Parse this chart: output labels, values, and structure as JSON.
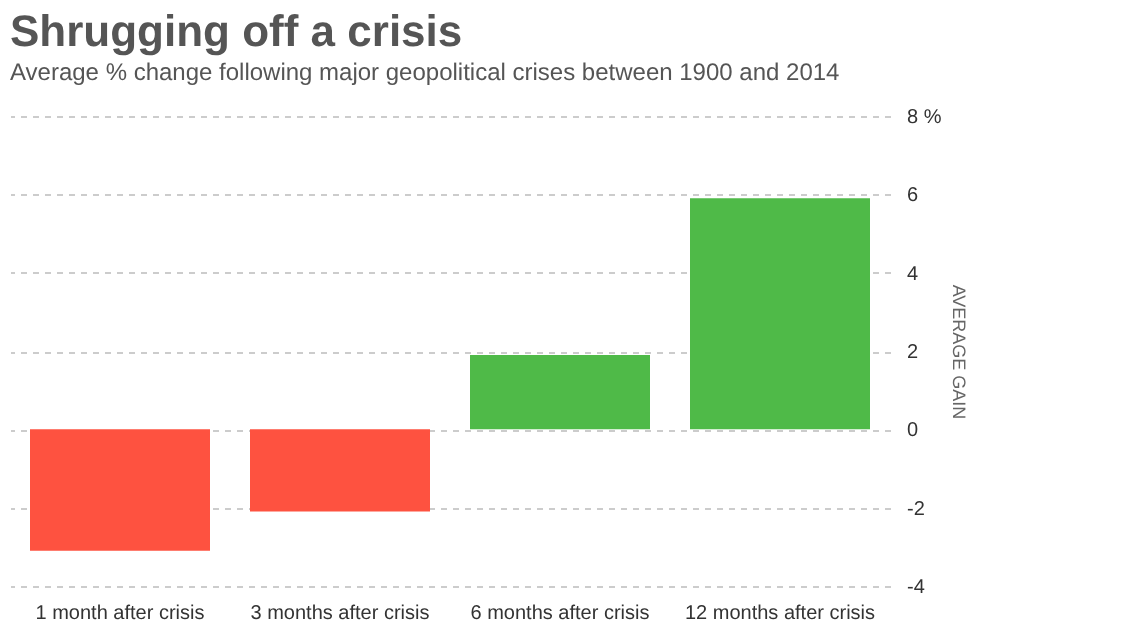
{
  "chart_data": {
    "type": "bar",
    "title": "Shrugging off a crisis",
    "subtitle": "Average % change following major geopolitical crises between 1900 and 2014",
    "ylabel": "AVERAGE GAIN",
    "categories": [
      "1 month after crisis",
      "3 months after crisis",
      "6 months after crisis",
      "12 months after crisis"
    ],
    "values": [
      -3.1,
      -2.1,
      1.9,
      5.9
    ],
    "colors": [
      "#fe5240",
      "#fe5240",
      "#4fba48",
      "#4fba48"
    ],
    "ylim": [
      -4,
      8
    ],
    "yticks": [
      -4,
      -2,
      0,
      2,
      4,
      6,
      {
        "value": 8,
        "label": "8 %"
      }
    ],
    "grid": "y"
  }
}
